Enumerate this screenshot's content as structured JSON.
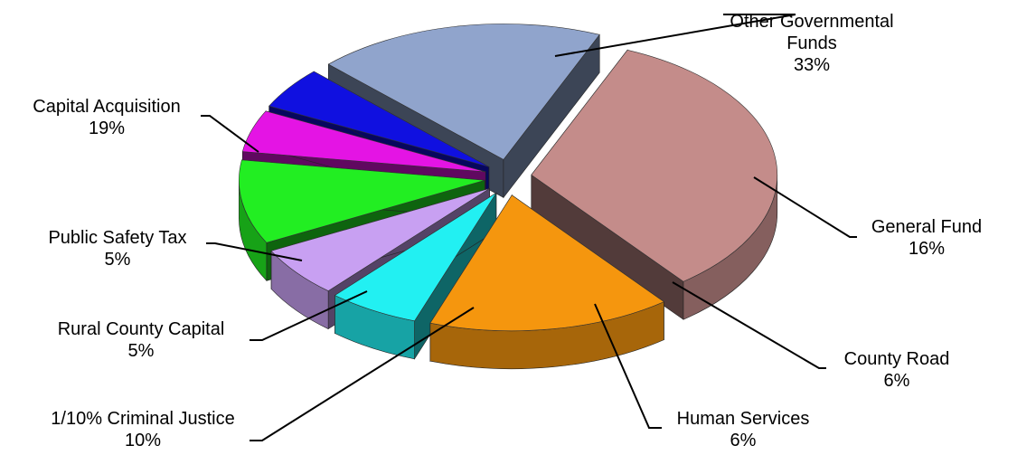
{
  "chart_data": {
    "type": "pie",
    "title": "",
    "style": "3d-exploded",
    "slices": [
      {
        "name": "Other Governmental Funds",
        "name_lines": [
          "Other Governmental",
          "Funds"
        ],
        "value": 33,
        "label": "33%",
        "color": "#c48c8a"
      },
      {
        "name": "General Fund",
        "name_lines": [
          "General Fund"
        ],
        "value": 16,
        "label": "16%",
        "color": "#f5960e"
      },
      {
        "name": "County Road",
        "name_lines": [
          "County Road"
        ],
        "value": 6,
        "label": "6%",
        "color": "#22f0f2"
      },
      {
        "name": "Human Services",
        "name_lines": [
          "Human Services"
        ],
        "value": 6,
        "label": "6%",
        "color": "#c8a0f2"
      },
      {
        "name": "1/10% Criminal Justice",
        "name_lines": [
          "1/10% Criminal Justice"
        ],
        "value": 10,
        "label": "10%",
        "color": "#22ee22"
      },
      {
        "name": "Rural County Capital",
        "name_lines": [
          "Rural County Capital"
        ],
        "value": 5,
        "label": "5%",
        "color": "#e414e4"
      },
      {
        "name": "Public Safety Tax",
        "name_lines": [
          "Public Safety Tax"
        ],
        "value": 5,
        "label": "5%",
        "color": "#1010e0"
      },
      {
        "name": "Capital Acquisition",
        "name_lines": [
          "Capital Acquisition"
        ],
        "value": 19,
        "label": "19%",
        "color": "#90a4cc"
      }
    ]
  }
}
